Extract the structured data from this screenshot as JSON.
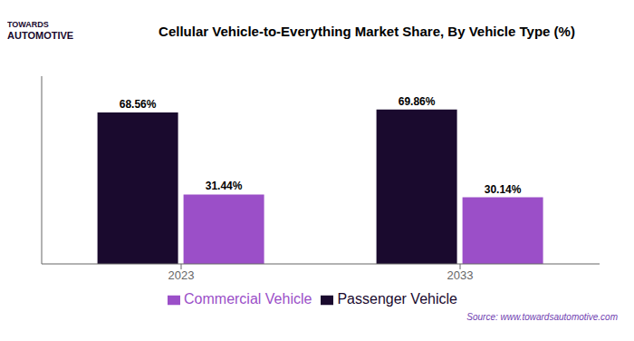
{
  "chart_data": {
    "type": "bar",
    "title": "Cellular Vehicle-to-Everything Market Share, By Vehicle Type (%)",
    "categories": [
      "2023",
      "2033"
    ],
    "series": [
      {
        "name": "Passenger Vehicle",
        "color": "#1a0a2e",
        "values": [
          68.56,
          69.86
        ],
        "value_labels": [
          "68.56%",
          "69.86%"
        ]
      },
      {
        "name": "Commercial Vehicle",
        "color": "#9b4fc8",
        "values": [
          31.44,
          30.14
        ],
        "value_labels": [
          "31.44%",
          "30.14%"
        ]
      }
    ],
    "ylim": [
      0,
      85
    ],
    "grid": false,
    "legend": "bottom",
    "data_labels": true,
    "tick_labels": "x",
    "annotations": [
      "TOWARDS",
      "AUTOMOTIVE",
      "Source: www.towardsautomotive.com"
    ]
  }
}
